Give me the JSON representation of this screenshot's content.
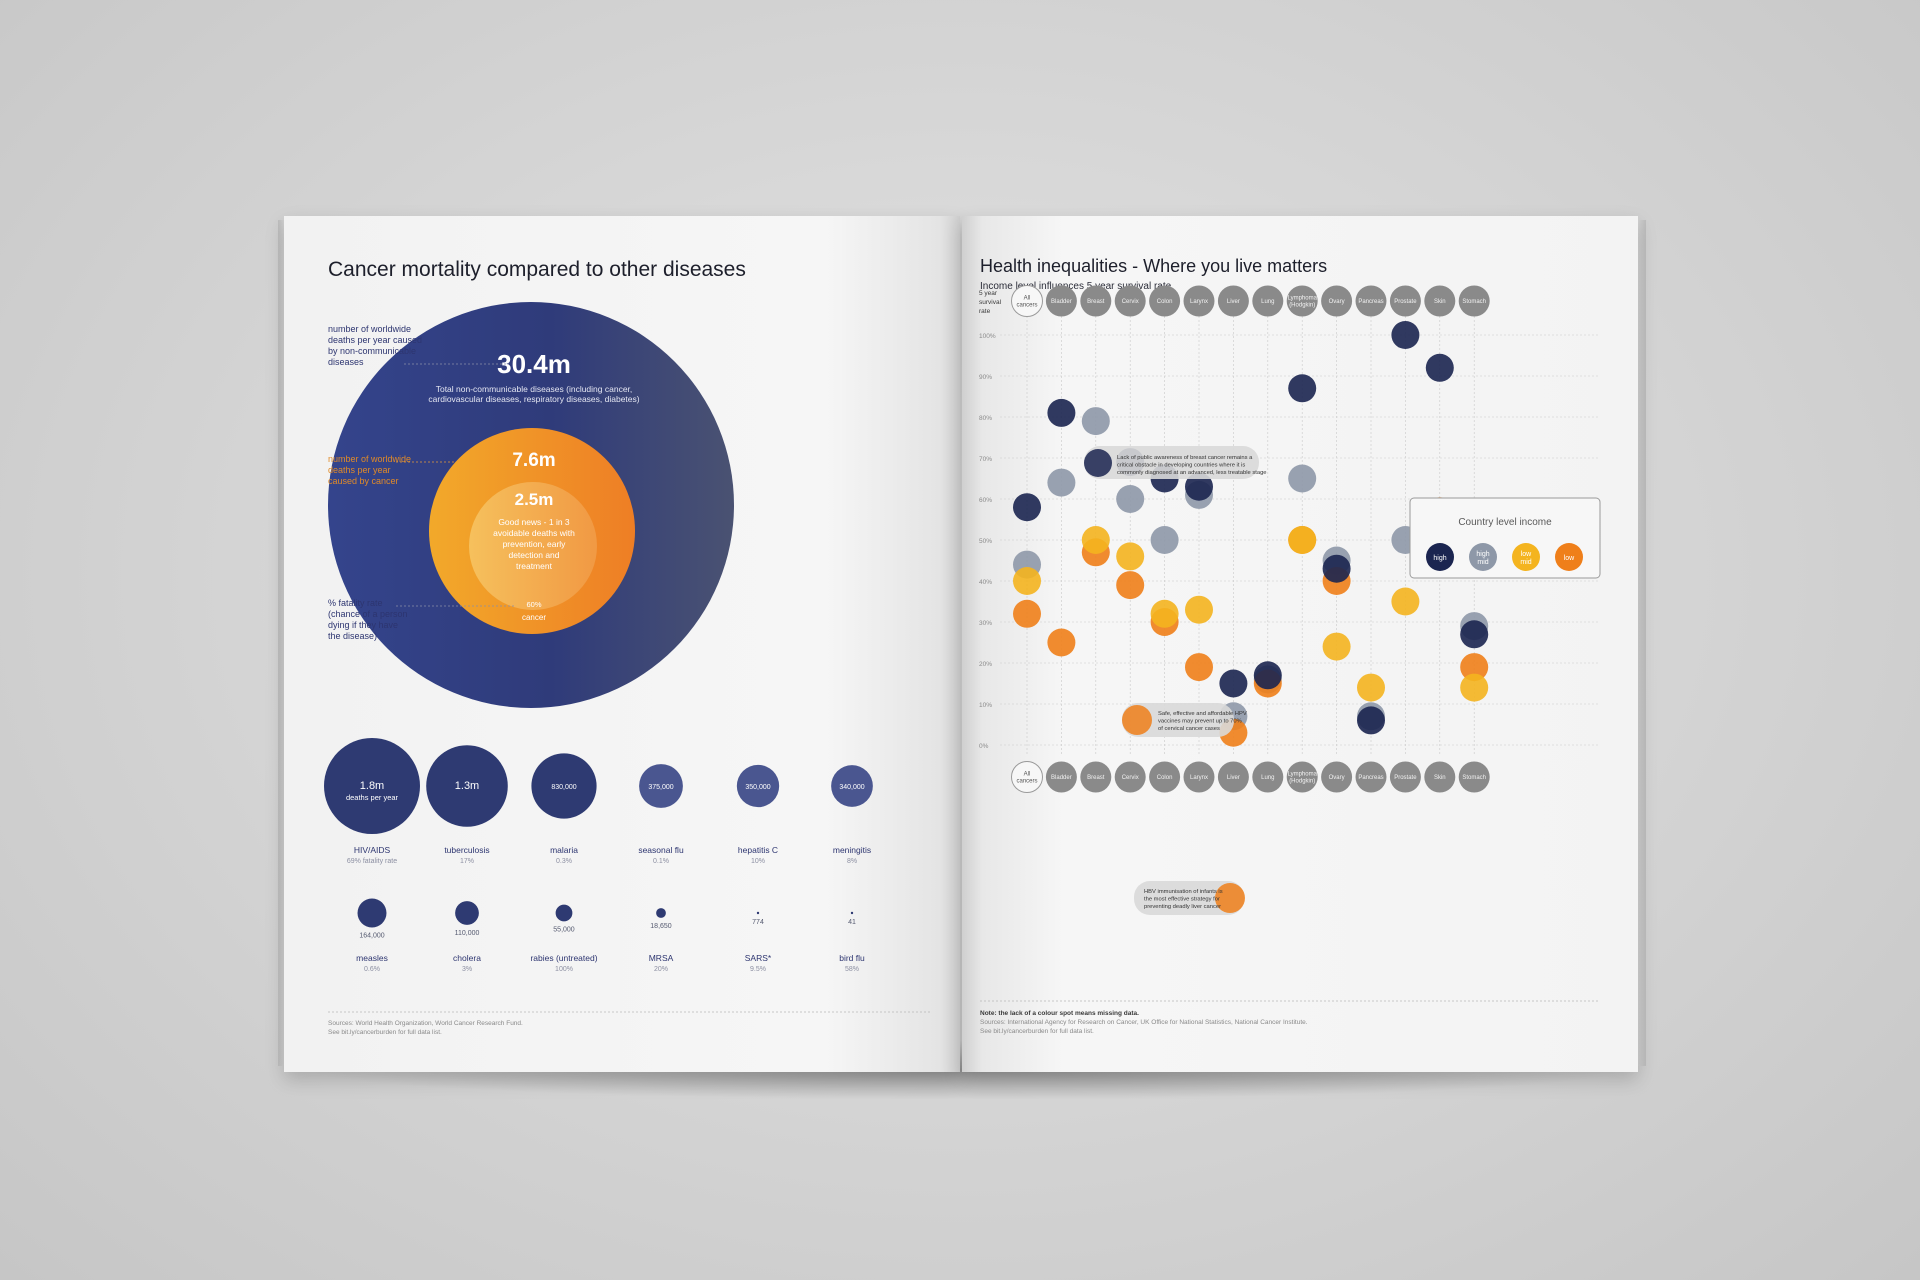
{
  "left": {
    "title": "Cancer mortality compared to other diseases",
    "ncd": {
      "value": "30.4m",
      "desc_line1": "Total non-communicable diseases (including cancer,",
      "desc_line2": "cardiovascular diseases, respiratory diseases, diabetes)",
      "annotation": [
        "number of worldwide",
        "deaths per year caused",
        "by non-communicable",
        "diseases"
      ]
    },
    "cancer": {
      "value": "7.6m",
      "annotation": [
        "number of worldwide",
        "deaths per year",
        "caused by cancer"
      ],
      "fatality": "60%",
      "label": "cancer"
    },
    "avoidable": {
      "value": "2.5m",
      "desc": [
        "Good news - 1 in 3",
        "avoidable deaths with",
        "prevention, early",
        "detection and",
        "treatment"
      ]
    },
    "fatality_annotation": [
      "% fatality rate",
      "(chance of a person",
      "dying if they have",
      "the disease)"
    ],
    "diseases": [
      {
        "name": "HIV/AIDS",
        "deaths": "1.8m",
        "deaths_sub": "deaths per year",
        "rate": "69% fatality rate",
        "value": 1800000
      },
      {
        "name": "tuberculosis",
        "deaths": "1.3m",
        "deaths_sub": "",
        "rate": "17%",
        "value": 1300000
      },
      {
        "name": "malaria",
        "deaths": "830,000",
        "deaths_sub": "",
        "rate": "0.3%",
        "value": 830000
      },
      {
        "name": "seasonal flu",
        "deaths": "375,000",
        "deaths_sub": "",
        "rate": "0.1%",
        "value": 375000
      },
      {
        "name": "hepatitis C",
        "deaths": "350,000",
        "deaths_sub": "",
        "rate": "10%",
        "value": 350000
      },
      {
        "name": "meningitis",
        "deaths": "340,000",
        "deaths_sub": "",
        "rate": "8%",
        "value": 340000
      },
      {
        "name": "measles",
        "deaths": "164,000",
        "deaths_sub": "",
        "rate": "0.6%",
        "value": 164000
      },
      {
        "name": "cholera",
        "deaths": "110,000",
        "deaths_sub": "",
        "rate": "3%",
        "value": 110000
      },
      {
        "name": "rabies (untreated)",
        "deaths": "55,000",
        "deaths_sub": "",
        "rate": "100%",
        "value": 55000
      },
      {
        "name": "MRSA",
        "deaths": "18,650",
        "deaths_sub": "",
        "rate": "20%",
        "value": 18650
      },
      {
        "name": "SARS*",
        "deaths": "774",
        "deaths_sub": "",
        "rate": "9.5%",
        "value": 774
      },
      {
        "name": "bird flu",
        "deaths": "41",
        "deaths_sub": "",
        "rate": "58%",
        "value": 41
      }
    ],
    "sources": [
      "Sources: World Health Organization, World Cancer Research Fund.",
      "See bit.ly/cancerburden for full data list."
    ]
  },
  "right": {
    "title": "Health inequalities - Where you live matters",
    "subtitle": "Income level influences 5 year survival rate",
    "axis_header": [
      "5 year",
      "survival",
      "rate"
    ],
    "legend_title": "Country level income",
    "legend": [
      {
        "label": [
          "high"
        ],
        "color": "#1b2550"
      },
      {
        "label": [
          "high",
          "mid"
        ],
        "color": "#8e98a8"
      },
      {
        "label": [
          "low",
          "mid"
        ],
        "color": "#f4b41f"
      },
      {
        "label": [
          "low"
        ],
        "color": "#ef7f1a"
      }
    ],
    "annotations": {
      "breast": [
        "Lack of public awareness of breast cancer remains a",
        "critical obstacle in developing countries where it is",
        "commonly diagnosed at an advanced, less treatable stage"
      ],
      "hpv": [
        "Safe, effective and affordable HPV",
        "vaccines may prevent up to 70%",
        "of cervical cancer cases"
      ],
      "hbv": [
        "HBV immunisation of infants is",
        "the most effective strategy for",
        "preventing deadly liver cancer"
      ]
    },
    "note": "Note: the lack of a colour spot means missing data.",
    "sources": [
      "Sources: International Agency for Research on Cancer, UK Office for National Statistics, National Cancer Institute.",
      "See bit.ly/cancerburden for full data list."
    ]
  },
  "chart_data": [
    {
      "type": "bubble",
      "title": "Cancer mortality compared to other diseases",
      "nested": [
        {
          "label": "Total non-communicable diseases",
          "value": 30400000
        },
        {
          "label": "cancer",
          "value": 7600000,
          "fatality_pct": 60
        },
        {
          "label": "avoidable cancer deaths",
          "value": 2500000
        }
      ],
      "categories": [
        "HIV/AIDS",
        "tuberculosis",
        "malaria",
        "seasonal flu",
        "hepatitis C",
        "meningitis",
        "measles",
        "cholera",
        "rabies (untreated)",
        "MRSA",
        "SARS*",
        "bird flu"
      ],
      "values": [
        1800000,
        1300000,
        830000,
        375000,
        350000,
        340000,
        164000,
        110000,
        55000,
        18650,
        774,
        41
      ],
      "fatality_rate_pct": [
        69,
        17,
        0.3,
        0.1,
        10,
        8,
        0.6,
        3,
        100,
        20,
        9.5,
        58
      ]
    },
    {
      "type": "scatter",
      "title": "Health inequalities - Where you live matters",
      "subtitle": "Income level influences 5 year survival rate",
      "categories": [
        "All cancers",
        "Bladder",
        "Breast",
        "Cervix",
        "Colon",
        "Larynx",
        "Liver",
        "Lung",
        "Lymphoma (Hodgkin)",
        "Ovary",
        "Pancreas",
        "Prostate",
        "Skin",
        "Stomach"
      ],
      "category_labels": [
        [
          "All",
          "cancers"
        ],
        [
          "Bladder"
        ],
        [
          "Breast"
        ],
        [
          "Cervix"
        ],
        [
          "Colon"
        ],
        [
          "Larynx"
        ],
        [
          "Liver"
        ],
        [
          "Lung"
        ],
        [
          "Lymphoma",
          "(Hodgkin)"
        ],
        [
          "Ovary"
        ],
        [
          "Pancreas"
        ],
        [
          "Prostate"
        ],
        [
          "Skin"
        ],
        [
          "Stomach"
        ]
      ],
      "ylabel": "5 year survival rate",
      "ylim": [
        0,
        100
      ],
      "yticks": [
        "0%",
        "10%",
        "20%",
        "30%",
        "40%",
        "50%",
        "60%",
        "70%",
        "80%",
        "90%",
        "100%"
      ],
      "series": [
        {
          "name": "high",
          "color": "#1b2550",
          "values": [
            58,
            81,
            null,
            69,
            65,
            63,
            15,
            17,
            87,
            43,
            6,
            100,
            92,
            27
          ]
        },
        {
          "name": "high mid",
          "color": "#8e98a8",
          "values": [
            44,
            64,
            79,
            60,
            50,
            61,
            7,
            16,
            65,
            45,
            7,
            50,
            51,
            29
          ]
        },
        {
          "name": "low mid",
          "color": "#f4b41f",
          "values": [
            40,
            null,
            50,
            46,
            32,
            33,
            null,
            null,
            50,
            24,
            14,
            35,
            null,
            14
          ]
        },
        {
          "name": "low",
          "color": "#ef7f1a",
          "values": [
            32,
            25,
            47,
            39,
            30,
            19,
            3,
            15,
            50,
            40,
            null,
            null,
            57,
            19
          ]
        }
      ],
      "legend_position": "right"
    }
  ]
}
